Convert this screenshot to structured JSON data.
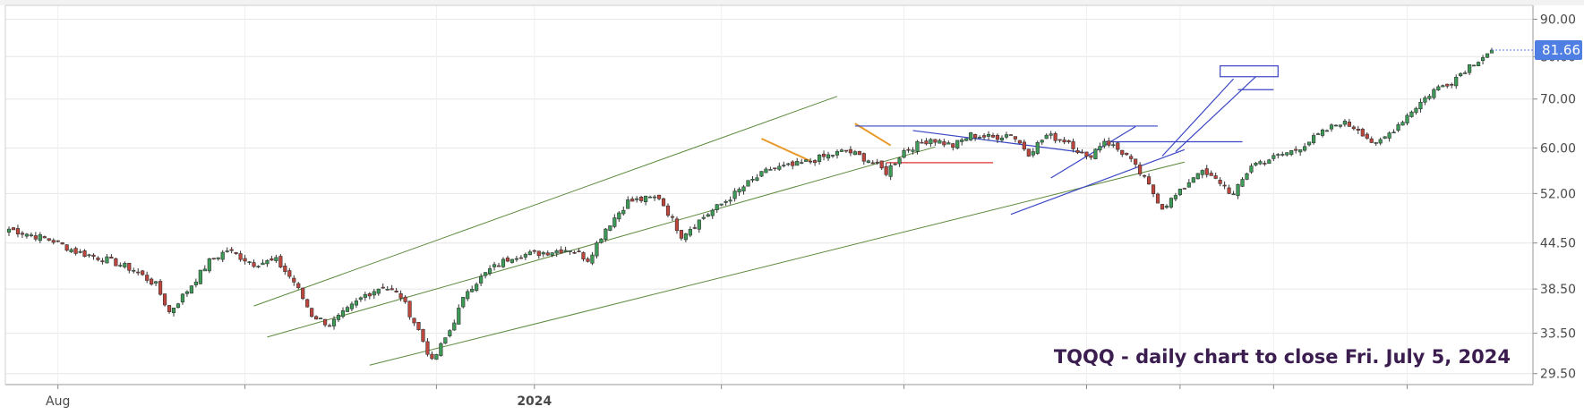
{
  "chart_data": {
    "type": "candlestick",
    "ticker": "TQQQ",
    "annotation": "TQQQ - daily chart to close Fri. July 5, 2024",
    "scale": "log",
    "ylim": [
      28.5,
      94
    ],
    "yticks": [
      {
        "value": 90,
        "label": "90.00"
      },
      {
        "value": 80,
        "label": "80.00"
      },
      {
        "value": 70,
        "label": "70.00"
      },
      {
        "value": 60,
        "label": "60.00"
      },
      {
        "value": 52,
        "label": "52.00"
      },
      {
        "value": 44.5,
        "label": "44.50"
      },
      {
        "value": 38.5,
        "label": "38.50"
      },
      {
        "value": 33.5,
        "label": "33.50"
      },
      {
        "value": 29.5,
        "label": "29.50"
      }
    ],
    "xtick_labels": [
      {
        "label": "Aug",
        "bar": 11,
        "bold": false
      },
      {
        "label": "2024",
        "bar": 118,
        "bold": true
      }
    ],
    "xtick_marks": [
      11,
      53,
      96,
      118,
      160,
      201,
      242,
      263,
      284,
      314
    ],
    "last_price": {
      "value": 81.66,
      "label": "81.66"
    },
    "colors": {
      "up": "#3c9c57",
      "down": "#c0453c",
      "axis_label_bg": "#4f7fe3",
      "grid": "#e6e6e6",
      "channel": "#5c8a3c",
      "trendline": "#3a46c4",
      "orange": "#e89a2a",
      "red": "#e03030"
    },
    "series": [
      {
        "bars": 334,
        "close_path": [
          [
            0,
            46.5
          ],
          [
            10,
            44.8
          ],
          [
            15,
            43.3
          ],
          [
            22,
            42.2
          ],
          [
            28,
            40.9
          ],
          [
            33,
            39.0
          ],
          [
            36,
            35.8
          ],
          [
            40,
            38.3
          ],
          [
            45,
            42.0
          ],
          [
            49,
            43.5
          ],
          [
            55,
            41.7
          ],
          [
            60,
            42.1
          ],
          [
            64,
            39.4
          ],
          [
            68,
            35.5
          ],
          [
            72,
            34.4
          ],
          [
            76,
            36.0
          ],
          [
            80,
            37.8
          ],
          [
            84,
            38.9
          ],
          [
            88,
            37.6
          ],
          [
            92,
            33.8
          ],
          [
            95,
            30.6
          ],
          [
            99,
            33.8
          ],
          [
            103,
            38.4
          ],
          [
            108,
            40.9
          ],
          [
            113,
            42.7
          ],
          [
            119,
            43.1
          ],
          [
            126,
            43.7
          ],
          [
            130,
            42.3
          ],
          [
            134,
            46.6
          ],
          [
            139,
            50.7
          ],
          [
            146,
            51.4
          ],
          [
            151,
            45.6
          ],
          [
            156,
            48.3
          ],
          [
            161,
            50.8
          ],
          [
            166,
            53.7
          ],
          [
            171,
            56.2
          ],
          [
            176,
            56.7
          ],
          [
            182,
            58.1
          ],
          [
            188,
            59.5
          ],
          [
            193,
            57.8
          ],
          [
            197,
            55.6
          ],
          [
            201,
            59.5
          ],
          [
            207,
            61.8
          ],
          [
            212,
            60.4
          ],
          [
            216,
            62.5
          ],
          [
            221,
            62.0
          ],
          [
            225,
            62.8
          ],
          [
            229,
            59.1
          ],
          [
            233,
            62.4
          ],
          [
            238,
            61.3
          ],
          [
            242,
            58.0
          ],
          [
            246,
            61.5
          ],
          [
            251,
            58.6
          ],
          [
            255,
            54.4
          ],
          [
            259,
            49.8
          ],
          [
            263,
            52.2
          ],
          [
            267,
            55.8
          ],
          [
            272,
            53.9
          ],
          [
            275,
            51.7
          ],
          [
            279,
            56.9
          ],
          [
            284,
            58.2
          ],
          [
            289,
            59.7
          ],
          [
            294,
            62.4
          ],
          [
            299,
            65.1
          ],
          [
            303,
            63.8
          ],
          [
            307,
            60.4
          ],
          [
            311,
            63.7
          ],
          [
            315,
            67.5
          ],
          [
            320,
            72.0
          ],
          [
            324,
            74.1
          ],
          [
            328,
            77.8
          ],
          [
            333,
            81.66
          ]
        ]
      }
    ],
    "grid": true
  }
}
